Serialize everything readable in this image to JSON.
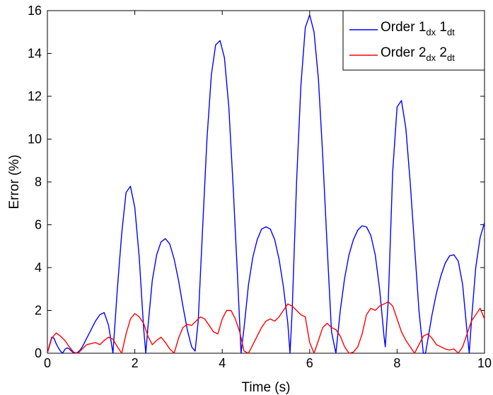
{
  "chart_data": {
    "type": "line",
    "xlabel": "Time (s)",
    "ylabel": "Error (%)",
    "xlim": [
      0,
      10
    ],
    "ylim": [
      0,
      16
    ],
    "xticks": [
      "0",
      "2",
      "4",
      "6",
      "8",
      "10"
    ],
    "yticks": [
      "0",
      "2",
      "4",
      "6",
      "8",
      "10",
      "12",
      "14",
      "16"
    ],
    "grid": false,
    "legend_position": "top-right",
    "series": [
      {
        "name": "Order 1dx 1dt",
        "legend_main": [
          "Order 1",
          " 1"
        ],
        "legend_subs": [
          "dx",
          "dt"
        ],
        "color": "#0000ff",
        "x": [
          0,
          0.05,
          0.1,
          0.15,
          0.2,
          0.25,
          0.3,
          0.35,
          0.4,
          0.45,
          0.5,
          0.55,
          0.6,
          0.65,
          0.7,
          0.75,
          0.8,
          0.9,
          1.0,
          1.1,
          1.2,
          1.3,
          1.4,
          1.5,
          1.6,
          1.7,
          1.8,
          1.9,
          2.0,
          2.1,
          2.2,
          2.25,
          2.3,
          2.4,
          2.5,
          2.6,
          2.7,
          2.8,
          2.9,
          3.0,
          3.1,
          3.2,
          3.3,
          3.38,
          3.45,
          3.55,
          3.65,
          3.75,
          3.85,
          3.95,
          4.05,
          4.15,
          4.25,
          4.35,
          4.43,
          4.5,
          4.6,
          4.7,
          4.8,
          4.9,
          5.0,
          5.1,
          5.2,
          5.3,
          5.4,
          5.5,
          5.55,
          5.6,
          5.7,
          5.8,
          5.9,
          6.0,
          6.1,
          6.2,
          6.3,
          6.4,
          6.5,
          6.6,
          6.7,
          6.8,
          6.9,
          7.0,
          7.1,
          7.2,
          7.3,
          7.4,
          7.5,
          7.6,
          7.7,
          7.73,
          7.8,
          7.9,
          8.0,
          8.1,
          8.2,
          8.3,
          8.4,
          8.5,
          8.6,
          8.65,
          8.7,
          8.8,
          8.9,
          9.0,
          9.1,
          9.2,
          9.3,
          9.4,
          9.5,
          9.6,
          9.65,
          9.7,
          9.8,
          9.9,
          10.0
        ],
        "y": [
          0.0,
          0.4,
          0.75,
          0.7,
          0.45,
          0.25,
          0.1,
          0.0,
          0.18,
          0.25,
          0.2,
          0.1,
          0.02,
          0.0,
          0.05,
          0.15,
          0.3,
          0.7,
          1.1,
          1.5,
          1.8,
          1.9,
          1.3,
          0.0,
          3.0,
          5.6,
          7.5,
          7.8,
          6.8,
          4.5,
          1.2,
          0.0,
          1.2,
          3.4,
          4.6,
          5.2,
          5.35,
          5.1,
          4.4,
          3.4,
          2.2,
          1.1,
          0.3,
          0.1,
          1.5,
          5.8,
          10.0,
          13.0,
          14.4,
          14.6,
          13.8,
          11.5,
          7.8,
          3.6,
          0.0,
          1.2,
          3.2,
          4.5,
          5.3,
          5.8,
          5.9,
          5.8,
          5.3,
          4.4,
          3.1,
          1.4,
          0.0,
          2.0,
          8.0,
          12.5,
          15.2,
          15.8,
          15.0,
          12.8,
          9.2,
          5.0,
          1.0,
          0.0,
          2.0,
          3.5,
          4.6,
          5.3,
          5.75,
          5.95,
          5.9,
          5.5,
          4.6,
          3.0,
          0.8,
          0.3,
          2.5,
          8.5,
          11.5,
          11.8,
          10.5,
          8.0,
          5.0,
          2.0,
          0.0,
          0.0,
          0.6,
          1.8,
          2.8,
          3.6,
          4.2,
          4.55,
          4.6,
          4.3,
          3.2,
          1.0,
          0.0,
          1.5,
          4.0,
          5.4,
          6.1
        ]
      },
      {
        "name": "Order 2dx 2dt",
        "legend_main": [
          "Order 2",
          " 2"
        ],
        "legend_subs": [
          "dx",
          "dt"
        ],
        "color": "#ff0000",
        "x": [
          0,
          0.1,
          0.2,
          0.3,
          0.4,
          0.5,
          0.6,
          0.7,
          0.8,
          0.9,
          1.0,
          1.1,
          1.2,
          1.3,
          1.4,
          1.5,
          1.6,
          1.7,
          1.8,
          1.9,
          2.0,
          2.1,
          2.2,
          2.3,
          2.4,
          2.5,
          2.6,
          2.7,
          2.8,
          2.9,
          3.0,
          3.1,
          3.2,
          3.3,
          3.4,
          3.5,
          3.6,
          3.7,
          3.8,
          3.9,
          4.0,
          4.1,
          4.2,
          4.3,
          4.4,
          4.5,
          4.6,
          4.7,
          4.8,
          4.9,
          5.0,
          5.1,
          5.2,
          5.3,
          5.4,
          5.5,
          5.6,
          5.7,
          5.8,
          5.9,
          6.0,
          6.1,
          6.2,
          6.3,
          6.4,
          6.5,
          6.6,
          6.7,
          6.8,
          6.9,
          7.0,
          7.1,
          7.2,
          7.3,
          7.4,
          7.5,
          7.6,
          7.7,
          7.8,
          7.9,
          8.0,
          8.1,
          8.2,
          8.3,
          8.4,
          8.5,
          8.6,
          8.7,
          8.8,
          8.9,
          9.0,
          9.1,
          9.2,
          9.3,
          9.4,
          9.5,
          9.6,
          9.7,
          9.8,
          9.9,
          10.0
        ],
        "y": [
          0.0,
          0.7,
          0.95,
          0.8,
          0.6,
          0.3,
          0.05,
          0.0,
          0.2,
          0.4,
          0.45,
          0.5,
          0.4,
          0.6,
          0.75,
          0.65,
          0.3,
          0.0,
          0.9,
          1.6,
          1.85,
          1.7,
          1.4,
          0.8,
          0.4,
          0.6,
          0.75,
          0.5,
          0.2,
          0.0,
          0.7,
          1.2,
          1.35,
          1.3,
          1.5,
          1.7,
          1.6,
          1.3,
          1.0,
          0.9,
          1.6,
          2.0,
          2.0,
          1.6,
          1.0,
          0.1,
          0.0,
          0.4,
          0.8,
          1.2,
          1.5,
          1.6,
          1.5,
          1.7,
          2.0,
          2.3,
          2.2,
          2.0,
          1.8,
          1.7,
          0.5,
          0.0,
          0.6,
          1.2,
          1.4,
          1.2,
          1.1,
          0.8,
          0.3,
          0.0,
          0.05,
          0.3,
          0.9,
          1.8,
          2.1,
          2.0,
          2.2,
          2.3,
          2.4,
          2.2,
          1.6,
          1.0,
          0.6,
          0.3,
          0.0,
          0.4,
          0.8,
          0.9,
          0.7,
          0.4,
          0.3,
          0.2,
          0.15,
          0.2,
          0.0,
          0.3,
          0.9,
          1.5,
          1.8,
          2.1,
          1.6
        ]
      }
    ]
  }
}
